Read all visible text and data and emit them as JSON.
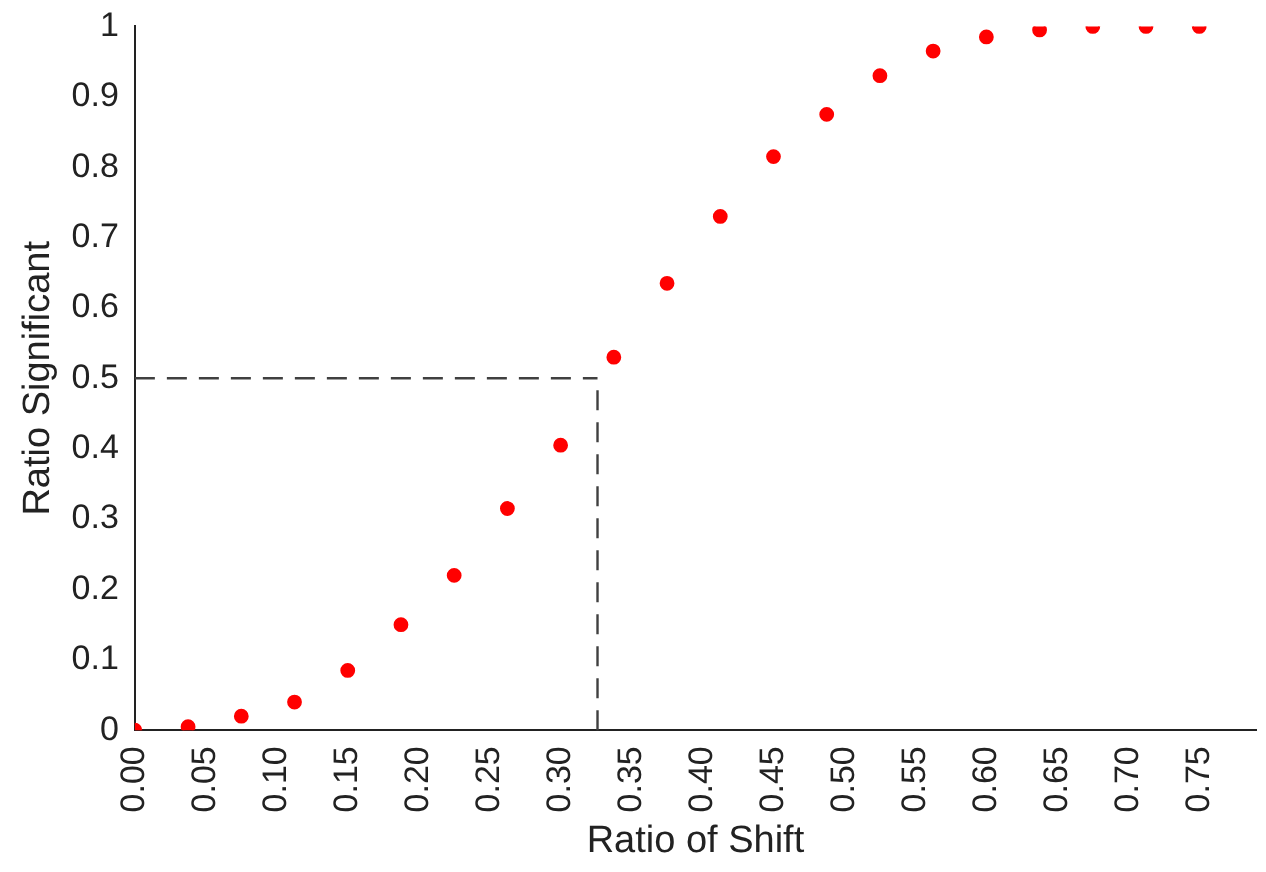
{
  "chart_data": {
    "type": "scatter",
    "xlabel": "Ratio of Shift",
    "ylabel": "Ratio Significant",
    "x": [
      0,
      0.0375,
      0.075,
      0.1125,
      0.15,
      0.1875,
      0.225,
      0.2625,
      0.3,
      0.3375,
      0.375,
      0.4125,
      0.45,
      0.4875,
      0.525,
      0.5625,
      0.6,
      0.6375,
      0.675,
      0.7125,
      0.75
    ],
    "series": [
      {
        "color": "#ff0000",
        "values": [
          0,
          0.005,
          0.02,
          0.04,
          0.085,
          0.15,
          0.22,
          0.315,
          0.405,
          0.53,
          0.635,
          0.73,
          0.815,
          0.875,
          0.93,
          0.965,
          0.985,
          0.995,
          1,
          1,
          1
        ]
      }
    ],
    "xlim": [
      0,
      0.79
    ],
    "xticks": [
      {
        "value": 0,
        "label": "0.00"
      },
      {
        "value": 0.05,
        "label": "0.05"
      },
      {
        "value": 0.1,
        "label": "0.10"
      },
      {
        "value": 0.15,
        "label": "0.15"
      },
      {
        "value": 0.2,
        "label": "0.20"
      },
      {
        "value": 0.25,
        "label": "0.25"
      },
      {
        "value": 0.3,
        "label": "0.30"
      },
      {
        "value": 0.35,
        "label": "0.35"
      },
      {
        "value": 0.4,
        "label": "0.40"
      },
      {
        "value": 0.45,
        "label": "0.45"
      },
      {
        "value": 0.5,
        "label": "0.50"
      },
      {
        "value": 0.55,
        "label": "0.55"
      },
      {
        "value": 0.6,
        "label": "0.60"
      },
      {
        "value": 0.65,
        "label": "0.65"
      },
      {
        "value": 0.7,
        "label": "0.70"
      },
      {
        "value": 0.75,
        "label": "0.75"
      }
    ],
    "ylim": [
      0,
      1
    ],
    "yticks": [
      0,
      0.1,
      0.2,
      0.3,
      0.4,
      0.5,
      0.6,
      0.7,
      0.8,
      0.9,
      1
    ],
    "ref_lines": [
      {
        "axis": "y",
        "value": 0.5,
        "color": "#404040",
        "line_style": "dashed"
      },
      {
        "axis": "x",
        "value": 0.326,
        "color": "#404040",
        "line_style": "dashed"
      }
    ],
    "grid": false,
    "legend": false,
    "marker": "circle"
  }
}
